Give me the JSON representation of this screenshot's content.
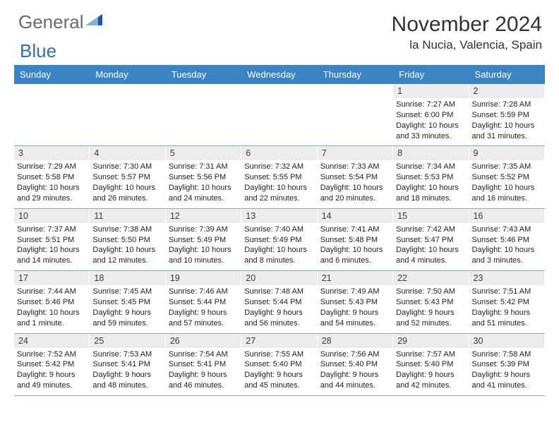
{
  "brand": {
    "text1": "General",
    "text2": "Blue",
    "color_gray": "#6a6a6a",
    "color_blue": "#2f6fb0",
    "triangle_light": "#7fb3dd",
    "triangle_dark": "#1b5a96"
  },
  "header": {
    "month_title": "November 2024",
    "location": "la Nucia, Valencia, Spain"
  },
  "calendar": {
    "header_bg": "#3b84c4",
    "header_fg": "#ffffff",
    "daynum_bg": "#ececec",
    "row_border": "#8aa9c2",
    "days": [
      "Sunday",
      "Monday",
      "Tuesday",
      "Wednesday",
      "Thursday",
      "Friday",
      "Saturday"
    ],
    "weeks": [
      [
        {
          "num": "",
          "sunrise": "",
          "sunset": "",
          "daylight": ""
        },
        {
          "num": "",
          "sunrise": "",
          "sunset": "",
          "daylight": ""
        },
        {
          "num": "",
          "sunrise": "",
          "sunset": "",
          "daylight": ""
        },
        {
          "num": "",
          "sunrise": "",
          "sunset": "",
          "daylight": ""
        },
        {
          "num": "",
          "sunrise": "",
          "sunset": "",
          "daylight": ""
        },
        {
          "num": "1",
          "sunrise": "Sunrise: 7:27 AM",
          "sunset": "Sunset: 6:00 PM",
          "daylight": "Daylight: 10 hours and 33 minutes."
        },
        {
          "num": "2",
          "sunrise": "Sunrise: 7:28 AM",
          "sunset": "Sunset: 5:59 PM",
          "daylight": "Daylight: 10 hours and 31 minutes."
        }
      ],
      [
        {
          "num": "3",
          "sunrise": "Sunrise: 7:29 AM",
          "sunset": "Sunset: 5:58 PM",
          "daylight": "Daylight: 10 hours and 29 minutes."
        },
        {
          "num": "4",
          "sunrise": "Sunrise: 7:30 AM",
          "sunset": "Sunset: 5:57 PM",
          "daylight": "Daylight: 10 hours and 26 minutes."
        },
        {
          "num": "5",
          "sunrise": "Sunrise: 7:31 AM",
          "sunset": "Sunset: 5:56 PM",
          "daylight": "Daylight: 10 hours and 24 minutes."
        },
        {
          "num": "6",
          "sunrise": "Sunrise: 7:32 AM",
          "sunset": "Sunset: 5:55 PM",
          "daylight": "Daylight: 10 hours and 22 minutes."
        },
        {
          "num": "7",
          "sunrise": "Sunrise: 7:33 AM",
          "sunset": "Sunset: 5:54 PM",
          "daylight": "Daylight: 10 hours and 20 minutes."
        },
        {
          "num": "8",
          "sunrise": "Sunrise: 7:34 AM",
          "sunset": "Sunset: 5:53 PM",
          "daylight": "Daylight: 10 hours and 18 minutes."
        },
        {
          "num": "9",
          "sunrise": "Sunrise: 7:35 AM",
          "sunset": "Sunset: 5:52 PM",
          "daylight": "Daylight: 10 hours and 16 minutes."
        }
      ],
      [
        {
          "num": "10",
          "sunrise": "Sunrise: 7:37 AM",
          "sunset": "Sunset: 5:51 PM",
          "daylight": "Daylight: 10 hours and 14 minutes."
        },
        {
          "num": "11",
          "sunrise": "Sunrise: 7:38 AM",
          "sunset": "Sunset: 5:50 PM",
          "daylight": "Daylight: 10 hours and 12 minutes."
        },
        {
          "num": "12",
          "sunrise": "Sunrise: 7:39 AM",
          "sunset": "Sunset: 5:49 PM",
          "daylight": "Daylight: 10 hours and 10 minutes."
        },
        {
          "num": "13",
          "sunrise": "Sunrise: 7:40 AM",
          "sunset": "Sunset: 5:49 PM",
          "daylight": "Daylight: 10 hours and 8 minutes."
        },
        {
          "num": "14",
          "sunrise": "Sunrise: 7:41 AM",
          "sunset": "Sunset: 5:48 PM",
          "daylight": "Daylight: 10 hours and 6 minutes."
        },
        {
          "num": "15",
          "sunrise": "Sunrise: 7:42 AM",
          "sunset": "Sunset: 5:47 PM",
          "daylight": "Daylight: 10 hours and 4 minutes."
        },
        {
          "num": "16",
          "sunrise": "Sunrise: 7:43 AM",
          "sunset": "Sunset: 5:46 PM",
          "daylight": "Daylight: 10 hours and 3 minutes."
        }
      ],
      [
        {
          "num": "17",
          "sunrise": "Sunrise: 7:44 AM",
          "sunset": "Sunset: 5:46 PM",
          "daylight": "Daylight: 10 hours and 1 minute."
        },
        {
          "num": "18",
          "sunrise": "Sunrise: 7:45 AM",
          "sunset": "Sunset: 5:45 PM",
          "daylight": "Daylight: 9 hours and 59 minutes."
        },
        {
          "num": "19",
          "sunrise": "Sunrise: 7:46 AM",
          "sunset": "Sunset: 5:44 PM",
          "daylight": "Daylight: 9 hours and 57 minutes."
        },
        {
          "num": "20",
          "sunrise": "Sunrise: 7:48 AM",
          "sunset": "Sunset: 5:44 PM",
          "daylight": "Daylight: 9 hours and 56 minutes."
        },
        {
          "num": "21",
          "sunrise": "Sunrise: 7:49 AM",
          "sunset": "Sunset: 5:43 PM",
          "daylight": "Daylight: 9 hours and 54 minutes."
        },
        {
          "num": "22",
          "sunrise": "Sunrise: 7:50 AM",
          "sunset": "Sunset: 5:43 PM",
          "daylight": "Daylight: 9 hours and 52 minutes."
        },
        {
          "num": "23",
          "sunrise": "Sunrise: 7:51 AM",
          "sunset": "Sunset: 5:42 PM",
          "daylight": "Daylight: 9 hours and 51 minutes."
        }
      ],
      [
        {
          "num": "24",
          "sunrise": "Sunrise: 7:52 AM",
          "sunset": "Sunset: 5:42 PM",
          "daylight": "Daylight: 9 hours and 49 minutes."
        },
        {
          "num": "25",
          "sunrise": "Sunrise: 7:53 AM",
          "sunset": "Sunset: 5:41 PM",
          "daylight": "Daylight: 9 hours and 48 minutes."
        },
        {
          "num": "26",
          "sunrise": "Sunrise: 7:54 AM",
          "sunset": "Sunset: 5:41 PM",
          "daylight": "Daylight: 9 hours and 46 minutes."
        },
        {
          "num": "27",
          "sunrise": "Sunrise: 7:55 AM",
          "sunset": "Sunset: 5:40 PM",
          "daylight": "Daylight: 9 hours and 45 minutes."
        },
        {
          "num": "28",
          "sunrise": "Sunrise: 7:56 AM",
          "sunset": "Sunset: 5:40 PM",
          "daylight": "Daylight: 9 hours and 44 minutes."
        },
        {
          "num": "29",
          "sunrise": "Sunrise: 7:57 AM",
          "sunset": "Sunset: 5:40 PM",
          "daylight": "Daylight: 9 hours and 42 minutes."
        },
        {
          "num": "30",
          "sunrise": "Sunrise: 7:58 AM",
          "sunset": "Sunset: 5:39 PM",
          "daylight": "Daylight: 9 hours and 41 minutes."
        }
      ]
    ]
  }
}
